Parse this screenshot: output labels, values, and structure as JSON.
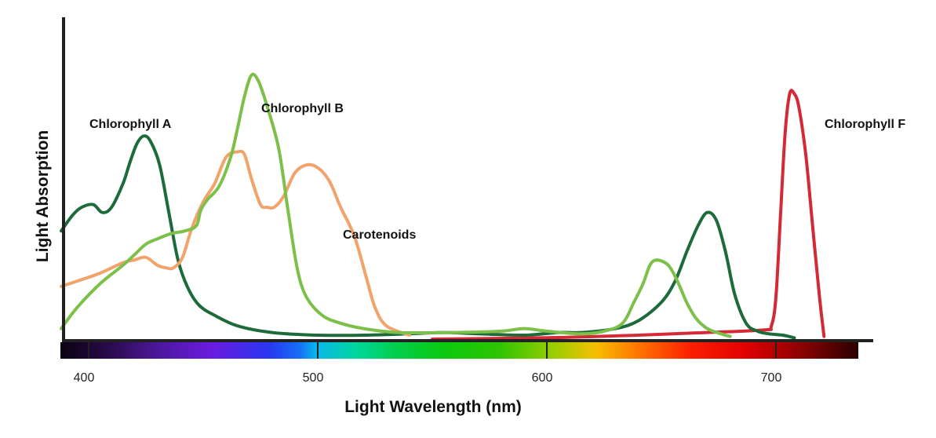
{
  "chart_data": {
    "type": "line",
    "title": "",
    "xlabel": "Light Wavelength (nm)",
    "ylabel": "Light Absorption",
    "x_ticks": [
      400,
      500,
      600,
      700
    ],
    "x_tick_labels": [
      "400",
      "500",
      "600",
      "700"
    ],
    "xlim": [
      388,
      730
    ],
    "ylim": [
      0,
      100
    ],
    "grid": false,
    "legend": "none (series labeled directly on plot)",
    "spectrum_bar": true,
    "series": [
      {
        "name": "Chlorophyll A",
        "color": "#1d6b3a",
        "points": [
          [
            388,
            41
          ],
          [
            393,
            47
          ],
          [
            397,
            50
          ],
          [
            402,
            51
          ],
          [
            406,
            48
          ],
          [
            410,
            50
          ],
          [
            415,
            59
          ],
          [
            418,
            67
          ],
          [
            421,
            74
          ],
          [
            424,
            77
          ],
          [
            427,
            75
          ],
          [
            431,
            66
          ],
          [
            435,
            48
          ],
          [
            439,
            30
          ],
          [
            443,
            20
          ],
          [
            448,
            13
          ],
          [
            455,
            9
          ],
          [
            465,
            5
          ],
          [
            480,
            2.5
          ],
          [
            500,
            1.5
          ],
          [
            520,
            1.5
          ],
          [
            540,
            2
          ],
          [
            555,
            2.5
          ],
          [
            570,
            2
          ],
          [
            590,
            1.5
          ],
          [
            605,
            2.5
          ],
          [
            615,
            2.5
          ],
          [
            630,
            4
          ],
          [
            640,
            7
          ],
          [
            650,
            14
          ],
          [
            656,
            22
          ],
          [
            661,
            33
          ],
          [
            666,
            43
          ],
          [
            670,
            48
          ],
          [
            674,
            45
          ],
          [
            678,
            33
          ],
          [
            682,
            17
          ],
          [
            687,
            6
          ],
          [
            692,
            3
          ],
          [
            697,
            2
          ],
          [
            703,
            1.5
          ],
          [
            708,
            0.5
          ]
        ]
      },
      {
        "name": "Chlorophyll B",
        "color": "#7cc04a",
        "points": [
          [
            388,
            4
          ],
          [
            395,
            12
          ],
          [
            405,
            21
          ],
          [
            415,
            28
          ],
          [
            420,
            32
          ],
          [
            425,
            36
          ],
          [
            430,
            38
          ],
          [
            436,
            40
          ],
          [
            442,
            41
          ],
          [
            447,
            43
          ],
          [
            449,
            49
          ],
          [
            452,
            53
          ],
          [
            457,
            58
          ],
          [
            462,
            69
          ],
          [
            465,
            80
          ],
          [
            468,
            92
          ],
          [
            471,
            100
          ],
          [
            474,
            98
          ],
          [
            478,
            88
          ],
          [
            483,
            72
          ],
          [
            487,
            49
          ],
          [
            491,
            27
          ],
          [
            495,
            16
          ],
          [
            502,
            9
          ],
          [
            510,
            6
          ],
          [
            520,
            4
          ],
          [
            535,
            2.5
          ],
          [
            560,
            2.5
          ],
          [
            580,
            3
          ],
          [
            590,
            4
          ],
          [
            600,
            3
          ],
          [
            615,
            2
          ],
          [
            625,
            3
          ],
          [
            633,
            6
          ],
          [
            638,
            14
          ],
          [
            642,
            21
          ],
          [
            645,
            28
          ],
          [
            648,
            30
          ],
          [
            653,
            28
          ],
          [
            657,
            22
          ],
          [
            661,
            14
          ],
          [
            665,
            8
          ],
          [
            670,
            4
          ],
          [
            676,
            2
          ],
          [
            680,
            1
          ]
        ]
      },
      {
        "name": "Carotenoids",
        "color": "#f2a36c",
        "points": [
          [
            388,
            20
          ],
          [
            395,
            22
          ],
          [
            405,
            25
          ],
          [
            415,
            29
          ],
          [
            420,
            30
          ],
          [
            425,
            31
          ],
          [
            430,
            28
          ],
          [
            434,
            27
          ],
          [
            437,
            27
          ],
          [
            441,
            31
          ],
          [
            445,
            42
          ],
          [
            450,
            52
          ],
          [
            455,
            59
          ],
          [
            460,
            69
          ],
          [
            465,
            71
          ],
          [
            468,
            70
          ],
          [
            471,
            61
          ],
          [
            475,
            51
          ],
          [
            478,
            50
          ],
          [
            481,
            50
          ],
          [
            485,
            54
          ],
          [
            490,
            63
          ],
          [
            495,
            66
          ],
          [
            500,
            65
          ],
          [
            505,
            60
          ],
          [
            510,
            50
          ],
          [
            516,
            39
          ],
          [
            521,
            24
          ],
          [
            525,
            12
          ],
          [
            530,
            5
          ],
          [
            540,
            1.5
          ]
        ]
      },
      {
        "name": "Chlorophyll F",
        "color": "#d42a35",
        "points": [
          [
            550,
            0
          ],
          [
            600,
            0.5
          ],
          [
            640,
            1.5
          ],
          [
            670,
            2.5
          ],
          [
            695,
            3.5
          ],
          [
            698,
            5
          ],
          [
            700,
            16
          ],
          [
            702,
            47
          ],
          [
            704,
            78
          ],
          [
            706,
            93
          ],
          [
            708,
            93
          ],
          [
            710,
            88
          ],
          [
            713,
            70
          ],
          [
            716,
            43
          ],
          [
            719,
            16
          ],
          [
            721,
            1
          ]
        ]
      }
    ],
    "annotations": [
      {
        "text": "Chlorophyll A",
        "series": "Chlorophyll A"
      },
      {
        "text": "Chlorophyll B",
        "series": "Chlorophyll B"
      },
      {
        "text": "Carotenoids",
        "series": "Carotenoids"
      },
      {
        "text": "Chlorophyll F",
        "series": "Chlorophyll F"
      }
    ]
  }
}
